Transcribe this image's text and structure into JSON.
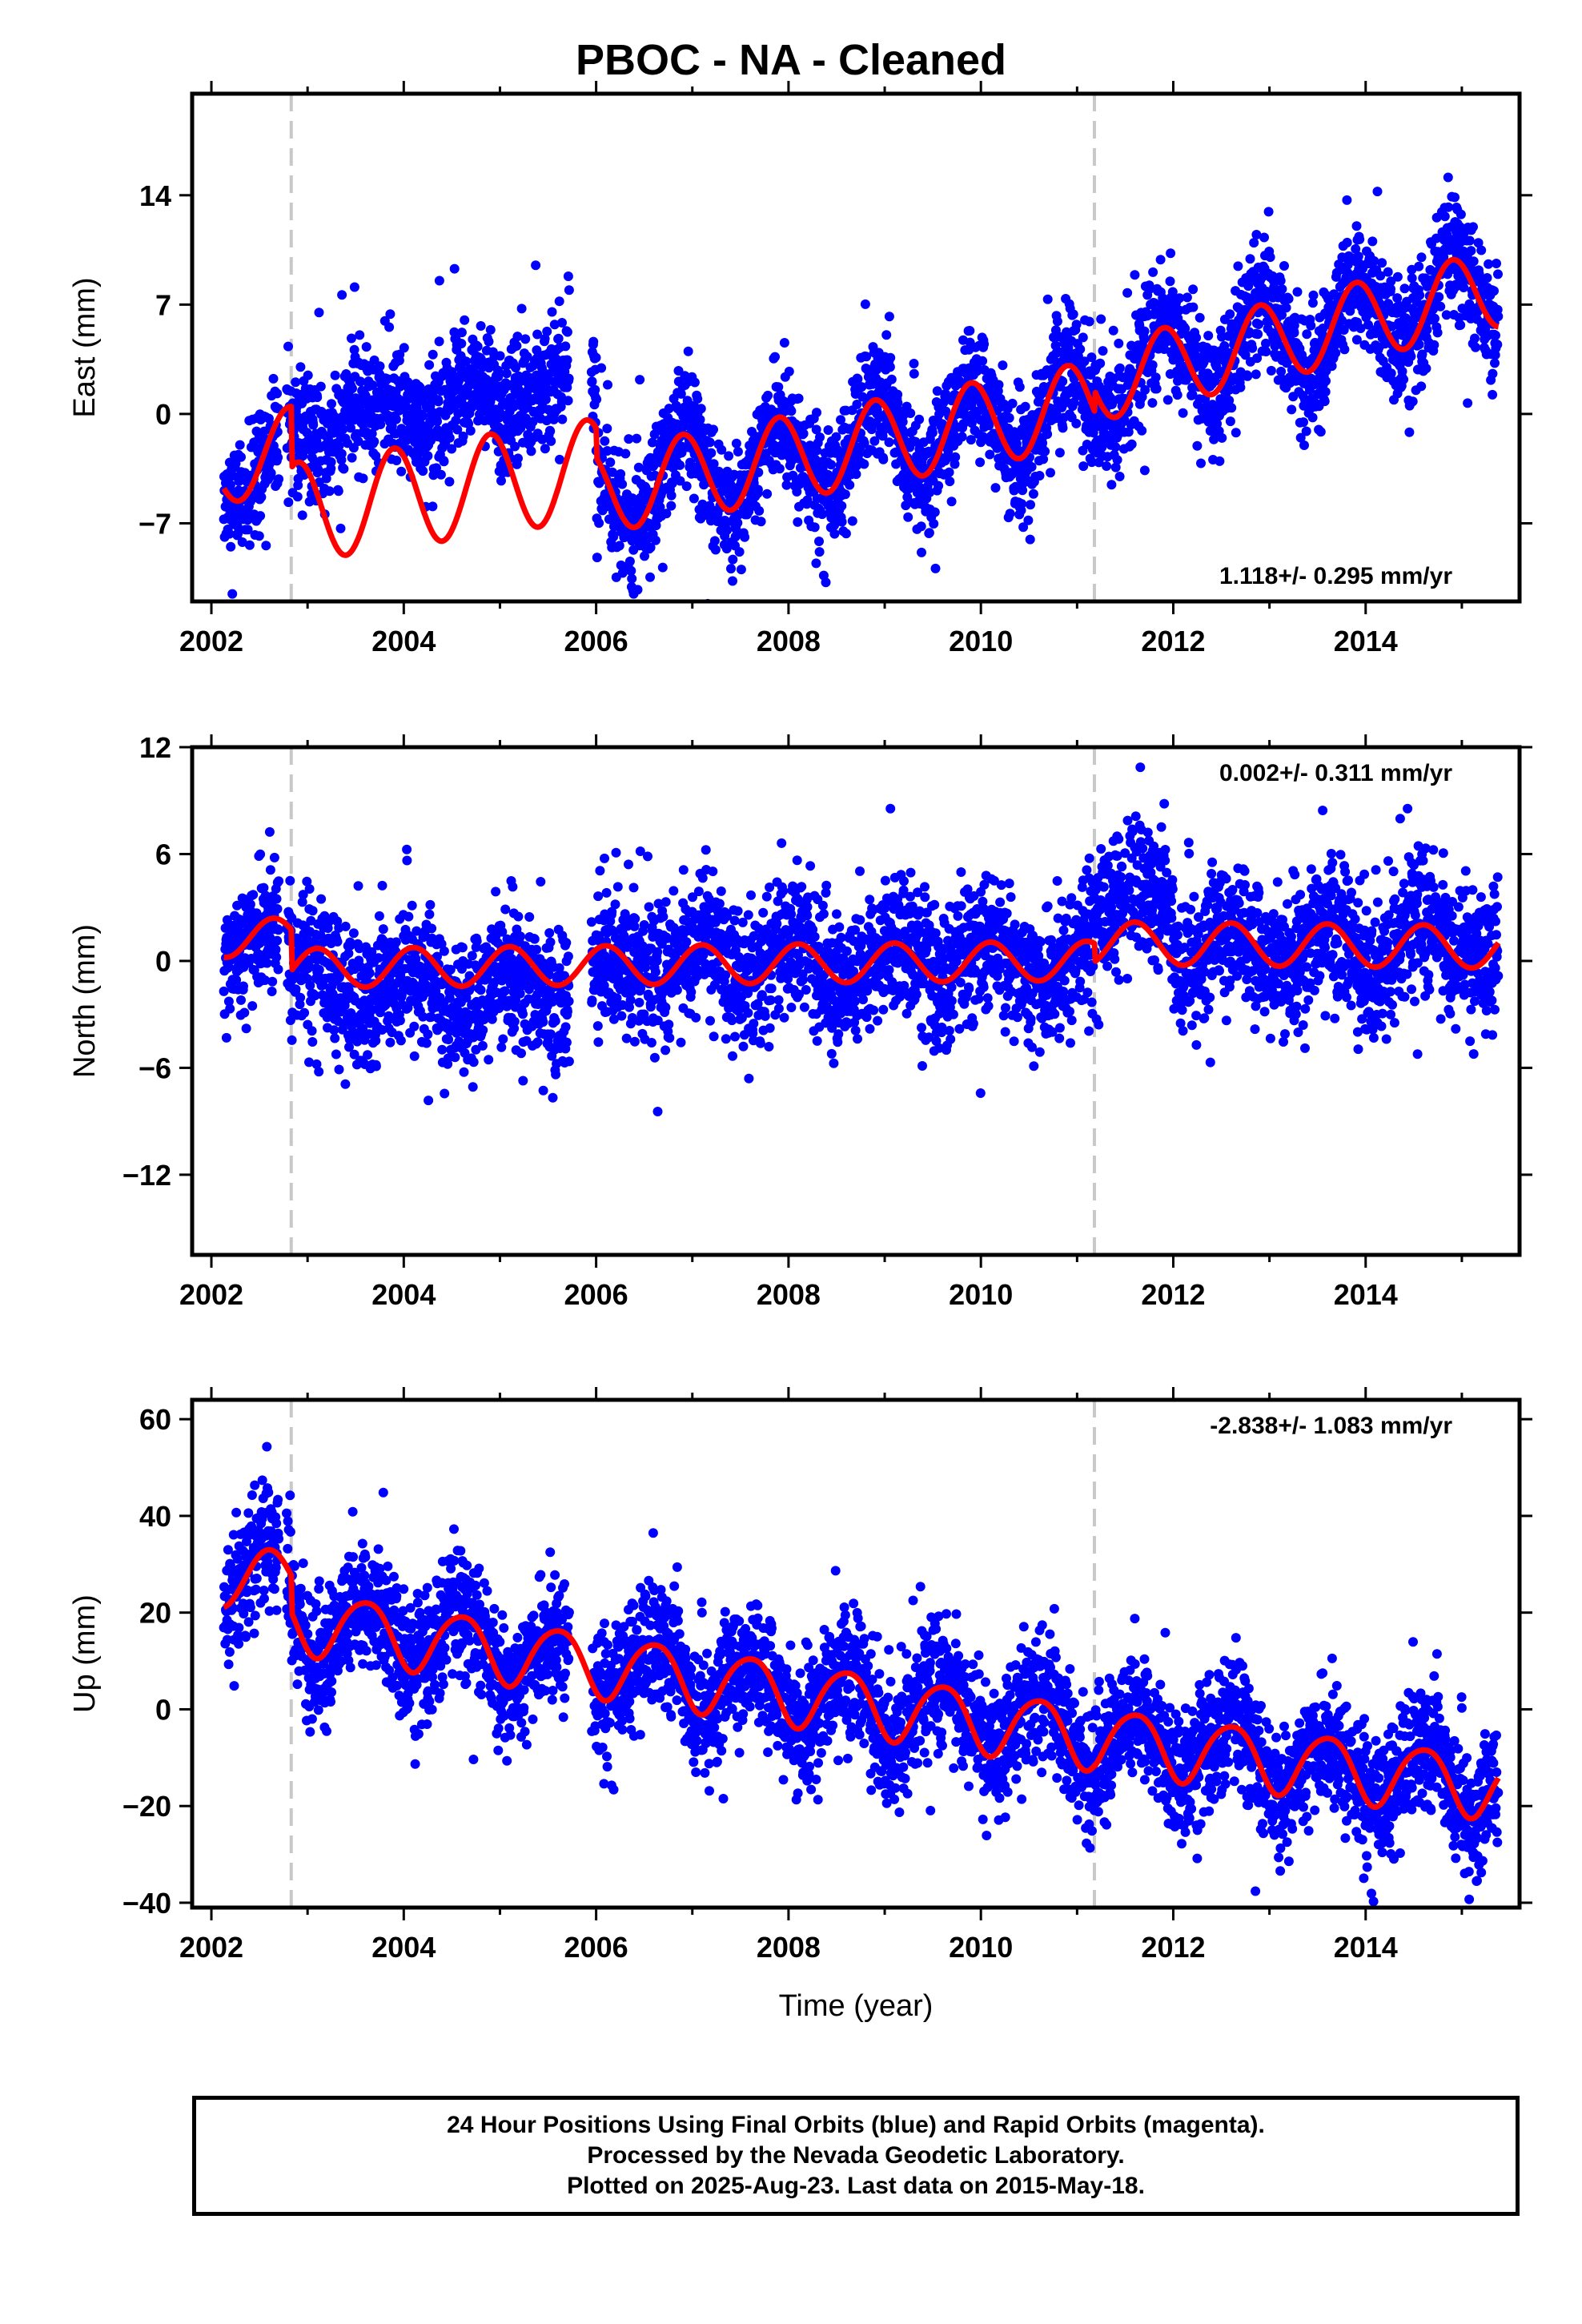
{
  "title": "PBOC  - NA - Cleaned",
  "colors": {
    "points": "#0000ff",
    "model": "#ff0000",
    "steps": "#c8c8c8",
    "frame": "#000000"
  },
  "chart_data": [
    {
      "type": "scatter",
      "id": "east",
      "ylabel": "East (mm)",
      "xlabel": "",
      "xlim": [
        2001.8,
        2015.6
      ],
      "ylim": [
        -12,
        20.5
      ],
      "xticks": [
        2002,
        2004,
        2006,
        2008,
        2010,
        2012,
        2014
      ],
      "yticks": [
        -7,
        0,
        7,
        14
      ],
      "rate": "1.118+/- 0.295 mm/yr",
      "rate_position": "bottom-right",
      "step_epochs": [
        2002.83,
        2011.18
      ],
      "data_span": [
        2002.13,
        2015.38
      ],
      "model_summary": {
        "trend_mm_per_yr": 1.118,
        "annual_amplitude_mm": 2.5,
        "series": "Final Orbits (blue)"
      },
      "grid": false
    },
    {
      "type": "scatter",
      "id": "north",
      "ylabel": "North (mm)",
      "xlabel": "",
      "xlim": [
        2001.8,
        2015.6
      ],
      "ylim": [
        -16.5,
        12
      ],
      "xticks": [
        2002,
        2004,
        2006,
        2008,
        2010,
        2012,
        2014
      ],
      "yticks": [
        -12,
        -6,
        0,
        6,
        12
      ],
      "rate": "0.002+/- 0.311 mm/yr",
      "rate_position": "top-right",
      "step_epochs": [
        2002.83,
        2011.18
      ],
      "data_span": [
        2002.13,
        2015.38
      ],
      "model_summary": {
        "trend_mm_per_yr": 0.002,
        "annual_amplitude_mm": 1.3,
        "series": "Final Orbits (blue)"
      },
      "grid": false
    },
    {
      "type": "scatter",
      "id": "up",
      "ylabel": "Up (mm)",
      "xlabel": "Time (year)",
      "xlim": [
        2001.8,
        2015.6
      ],
      "ylim": [
        -41,
        64
      ],
      "xticks": [
        2002,
        2004,
        2006,
        2008,
        2010,
        2012,
        2014
      ],
      "yticks": [
        -40,
        -20,
        0,
        20,
        40,
        60
      ],
      "rate": "-2.838+/- 1.083 mm/yr",
      "rate_position": "top-right",
      "step_epochs": [
        2002.83,
        2011.18
      ],
      "data_span": [
        2002.13,
        2015.38
      ],
      "model_summary": {
        "trend_mm_per_yr": -2.838,
        "annual_amplitude_mm": 6,
        "series": "Final Orbits (blue)"
      },
      "grid": false
    }
  ],
  "footer": {
    "line1": "24 Hour Positions Using Final Orbits (blue) and Rapid Orbits (magenta).",
    "line2": "Processed by the Nevada Geodetic Laboratory.",
    "line3": "Plotted on 2025-Aug-23. Last data on 2015-May-18."
  }
}
